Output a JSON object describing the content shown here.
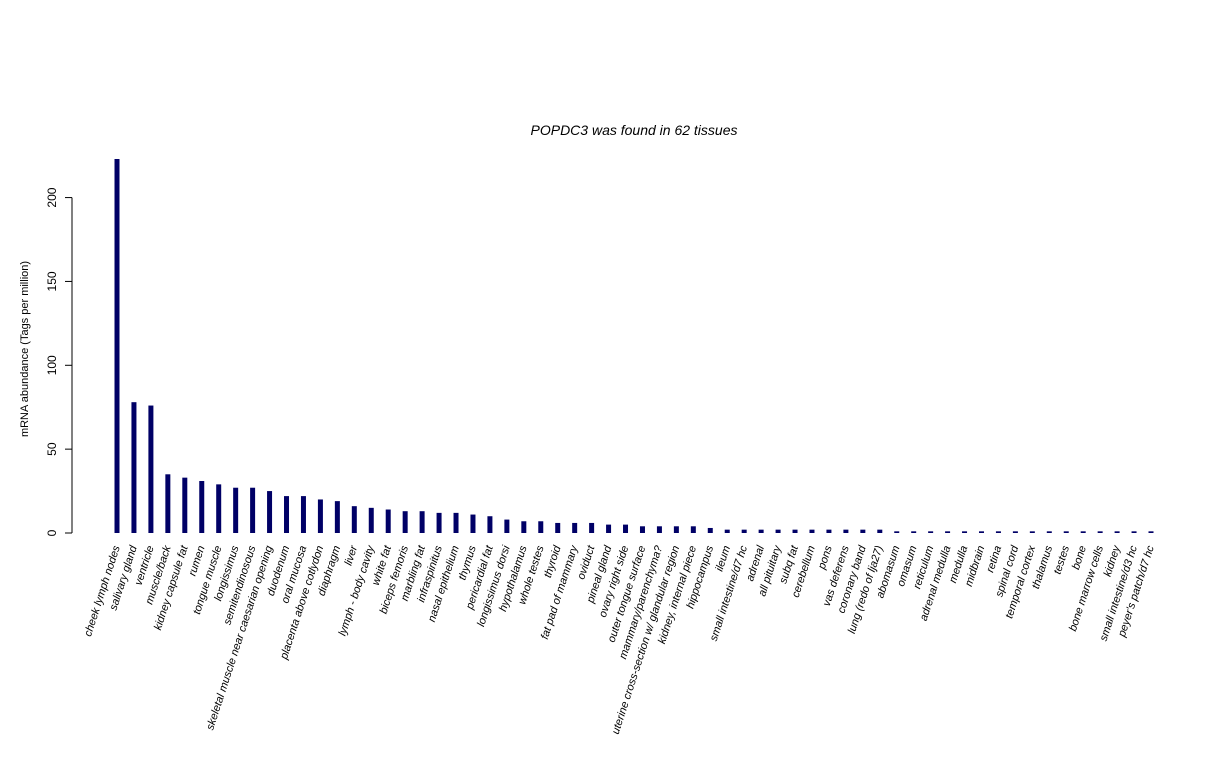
{
  "chart_data": {
    "type": "bar",
    "title": "POPDC3  was found in  62  tissues",
    "xlabel": "",
    "ylabel": "mRNA abundance (Tags per million)",
    "ylim": [
      0,
      223
    ],
    "yticks": [
      0,
      50,
      100,
      150,
      200
    ],
    "bar_color": "#000066",
    "grid": false,
    "legend": "none",
    "categories": [
      "cheek lymph nodes",
      "salivary gland",
      "ventricle",
      "muscle/back",
      "kidney capsule fat",
      "rumen",
      "tongue muscle",
      "longissimus",
      "semitendinosous",
      "skeletal muscle near caesarian opening",
      "duodenum",
      "oral mucosa",
      "placenta above cotlydon",
      "diaphragm",
      "liver",
      "lymph - body cavity",
      "white fat",
      "biceps femoris",
      "marbling fat",
      "infraspinitus",
      "nasal epithelium",
      "thymus",
      "pericardial fat",
      "longissimus dorsi",
      "hypothalamus",
      "whole testes",
      "thyroid",
      "fat pad of mammary",
      "oviduct",
      "pineal gland",
      "ovary right side",
      "outer tongue surface",
      "mammary/parenchyma?",
      "uterine cross-section w/ glandular region",
      "kidney, internal piece",
      "hippocampus",
      "ileum",
      "small intestine/d7 hc",
      "adrenal",
      "all pituitary",
      "subq fat",
      "cerebellum",
      "pons",
      "vas deferens",
      "coronary band",
      "lung (redo of lja27)",
      "abomasum",
      "omasum",
      "reticulum",
      "adrenal medulla",
      "medulla",
      "midbrain",
      "retina",
      "spinal cord",
      "temporal cortex",
      "thalamus",
      "testes",
      "bone",
      "bone marrow cells",
      "kidney",
      "small intestine/d3 hc",
      "peyer's patch/d7 hc"
    ],
    "values": [
      223,
      78,
      76,
      35,
      33,
      31,
      29,
      27,
      27,
      25,
      22,
      22,
      20,
      19,
      16,
      15,
      14,
      13,
      13,
      12,
      12,
      11,
      10,
      8,
      7,
      7,
      6,
      6,
      6,
      5,
      5,
      4,
      4,
      4,
      4,
      3,
      2,
      2,
      2,
      2,
      2,
      2,
      2,
      2,
      2,
      2,
      1,
      1,
      1,
      1,
      1,
      1,
      1,
      1,
      1,
      1,
      1,
      1,
      1,
      1,
      1,
      1
    ]
  }
}
